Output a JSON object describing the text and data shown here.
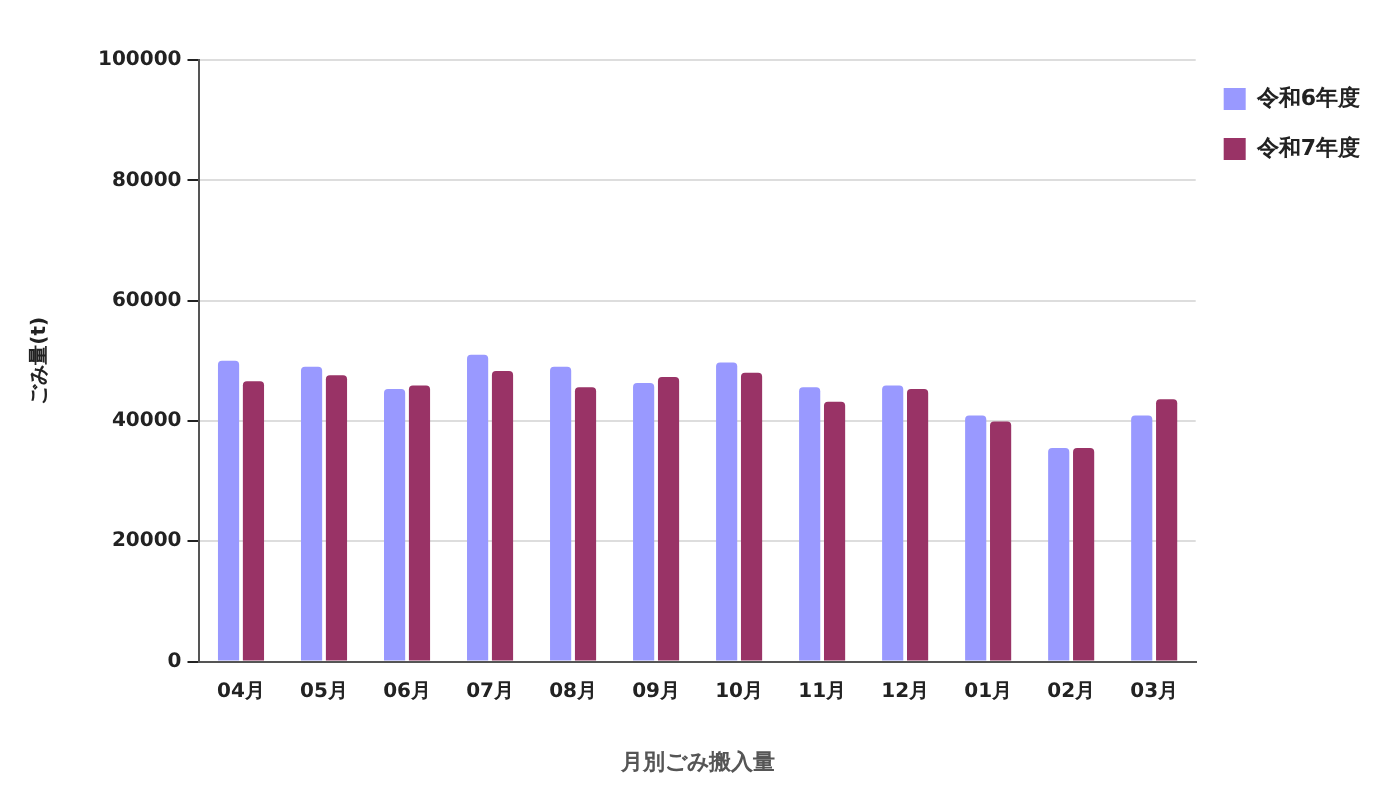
{
  "chart_data": {
    "type": "bar",
    "xlabel": "月別ごみ搬入量",
    "ylabel": "ごみ量(t)",
    "categories": [
      "04月",
      "05月",
      "06月",
      "07月",
      "08月",
      "09月",
      "10月",
      "11月",
      "12月",
      "01月",
      "02月",
      "03月"
    ],
    "series": [
      {
        "name": "令和6年度",
        "color": "#9999ff",
        "values": [
          50000,
          49000,
          45300,
          51000,
          49000,
          46300,
          49700,
          45600,
          45900,
          40900,
          35500,
          40900
        ]
      },
      {
        "name": "令和7年度",
        "color": "#993366",
        "values": [
          46600,
          47600,
          45900,
          48300,
          45600,
          47300,
          48000,
          43200,
          45300,
          39900,
          35500,
          43600
        ]
      }
    ],
    "ylim": [
      0,
      100000
    ],
    "yticks": [
      0,
      20000,
      40000,
      60000,
      80000,
      100000
    ],
    "grid": "y",
    "legend": "right"
  }
}
